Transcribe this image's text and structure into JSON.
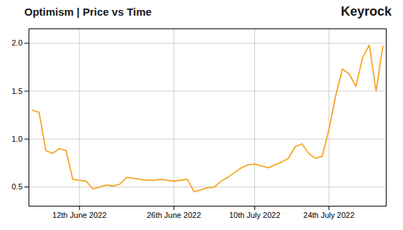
{
  "chart_data": {
    "type": "line",
    "title": "Optimism | Price vs Time",
    "annotations": [
      "Keyrock"
    ],
    "x": [
      0,
      1,
      2,
      3,
      4,
      5,
      6,
      7,
      8,
      9,
      10,
      11,
      12,
      13,
      14,
      15,
      16,
      17,
      18,
      19,
      20,
      21,
      22,
      23,
      24,
      25,
      26,
      27,
      28,
      29,
      30,
      31,
      32,
      33,
      34,
      35,
      36,
      37,
      38,
      39,
      40,
      41,
      42,
      43,
      44,
      45,
      46,
      47,
      48,
      49,
      50,
      51,
      52
    ],
    "values": [
      1.3,
      1.28,
      0.88,
      0.85,
      0.9,
      0.88,
      0.58,
      0.57,
      0.56,
      0.48,
      0.5,
      0.52,
      0.51,
      0.53,
      0.6,
      0.59,
      0.58,
      0.57,
      0.57,
      0.58,
      0.57,
      0.56,
      0.57,
      0.58,
      0.45,
      0.47,
      0.49,
      0.5,
      0.56,
      0.6,
      0.65,
      0.7,
      0.73,
      0.74,
      0.72,
      0.7,
      0.73,
      0.76,
      0.8,
      0.92,
      0.95,
      0.85,
      0.8,
      0.82,
      1.1,
      1.45,
      1.73,
      1.68,
      1.55,
      1.85,
      1.98,
      1.5,
      1.97
    ],
    "color": "#F5A623",
    "xlim": [
      -0.5,
      52.5
    ],
    "xticks": [
      {
        "value": 7,
        "label": "12th June 2022"
      },
      {
        "value": 21,
        "label": "26th June 2022"
      },
      {
        "value": 33,
        "label": "10th July 2022"
      },
      {
        "value": 44,
        "label": "24th July 2022"
      }
    ],
    "ylim": [
      0.3,
      2.15
    ],
    "yticks": [
      0.5,
      {
        "value": 1.0,
        "label": "1.0"
      },
      1.5,
      {
        "value": 2.0,
        "label": "2.0"
      }
    ],
    "grid": true
  }
}
